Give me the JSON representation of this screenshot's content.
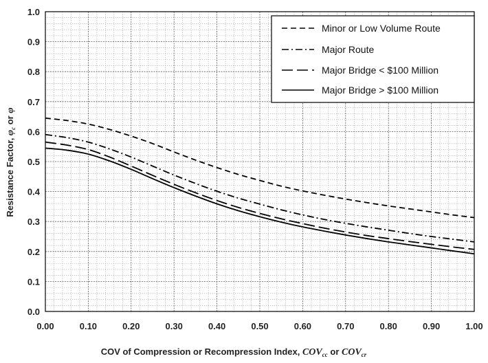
{
  "chart_data": {
    "type": "line",
    "xlabel": {
      "prefix": "COV of Compression or Recompression Index, ",
      "sym1": "COV",
      "sub1": "cc",
      "mid": " or ",
      "sym2": "COV",
      "sub2": "cr"
    },
    "ylabel": {
      "prefix": "Resistance Factor, ",
      "sym1": "φ",
      "sub1": "c",
      "mid": " or ",
      "sym2": "φ",
      "sub2": ""
    },
    "xlim": [
      0,
      1
    ],
    "ylim": [
      0,
      1
    ],
    "xticks": [
      "0.00",
      "0.10",
      "0.20",
      "0.30",
      "0.40",
      "0.50",
      "0.60",
      "0.70",
      "0.80",
      "0.90",
      "1.00"
    ],
    "yticks": [
      "0.0",
      "0.1",
      "0.2",
      "0.3",
      "0.4",
      "0.5",
      "0.6",
      "0.7",
      "0.8",
      "0.9",
      "1.0"
    ],
    "grid": true,
    "legend_position": "top-right",
    "x": [
      0.0,
      0.05,
      0.1,
      0.15,
      0.2,
      0.25,
      0.3,
      0.35,
      0.4,
      0.45,
      0.5,
      0.55,
      0.6,
      0.65,
      0.7,
      0.75,
      0.8,
      0.85,
      0.9,
      0.95,
      1.0
    ],
    "series": [
      {
        "name": "Minor or Low Volume Route",
        "dash": "dashed",
        "values": [
          0.645,
          0.637,
          0.625,
          0.607,
          0.585,
          0.56,
          0.532,
          0.505,
          0.48,
          0.457,
          0.437,
          0.418,
          0.402,
          0.388,
          0.375,
          0.363,
          0.352,
          0.342,
          0.332,
          0.322,
          0.313
        ]
      },
      {
        "name": "Major Route",
        "dash": "dash-dot",
        "values": [
          0.59,
          0.58,
          0.565,
          0.542,
          0.515,
          0.485,
          0.455,
          0.427,
          0.401,
          0.378,
          0.358,
          0.339,
          0.322,
          0.307,
          0.294,
          0.282,
          0.271,
          0.26,
          0.25,
          0.241,
          0.232
        ]
      },
      {
        "name": "Major Bridge < $100 Million",
        "dash": "long-dash",
        "values": [
          0.565,
          0.555,
          0.54,
          0.515,
          0.485,
          0.454,
          0.424,
          0.396,
          0.37,
          0.347,
          0.327,
          0.309,
          0.293,
          0.278,
          0.265,
          0.253,
          0.243,
          0.233,
          0.224,
          0.215,
          0.207
        ]
      },
      {
        "name": "Major Bridge > $100 Million",
        "dash": "solid",
        "values": [
          0.545,
          0.538,
          0.525,
          0.502,
          0.474,
          0.443,
          0.413,
          0.385,
          0.359,
          0.336,
          0.316,
          0.298,
          0.282,
          0.268,
          0.255,
          0.243,
          0.232,
          0.222,
          0.212,
          0.202,
          0.192
        ]
      }
    ]
  }
}
